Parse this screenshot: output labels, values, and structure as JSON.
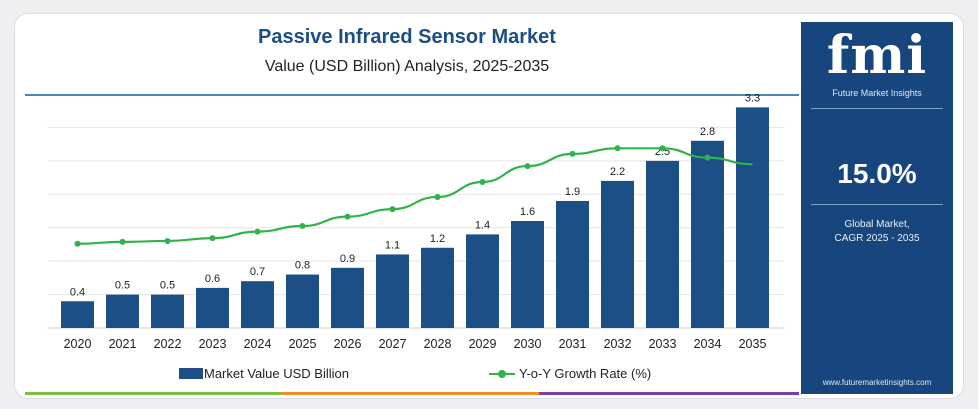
{
  "header": {
    "title": "Passive Infrared Sensor Market",
    "subtitle": "Value (USD Billion) Analysis, 2025-2035"
  },
  "legend": {
    "bar_label": "Market Value USD Billion",
    "line_label": "Y-o-Y Growth Rate (%)"
  },
  "sidebar": {
    "logo_text": "fmi",
    "logo_subtitle": "Future Market Insights",
    "cagr_value": "15.0%",
    "cagr_label_line1": "Global Market,",
    "cagr_label_line2": "CAGR 2025 - 2035",
    "website": "www.futuremarketinsights.com"
  },
  "colors": {
    "bar": "#1b4f86",
    "line": "#31b34a",
    "title": "#1c4e86",
    "sidebar_bg": "#17457e",
    "strip": [
      "#7cc142",
      "#f28c28",
      "#7b3fa0"
    ]
  },
  "chart_data": {
    "type": "bar",
    "title": "Passive Infrared Sensor Market",
    "subtitle": "Value (USD Billion) Analysis, 2025-2035",
    "categories": [
      "2020",
      "2021",
      "2022",
      "2023",
      "2024",
      "2025",
      "2026",
      "2027",
      "2028",
      "2029",
      "2030",
      "2031",
      "2032",
      "2033",
      "2034",
      "2035"
    ],
    "series": [
      {
        "name": "Market Value USD Billion",
        "type": "bar",
        "values": [
          0.4,
          0.5,
          0.5,
          0.6,
          0.7,
          0.8,
          0.9,
          1.1,
          1.2,
          1.4,
          1.6,
          1.9,
          2.2,
          2.5,
          2.8,
          3.3
        ],
        "labels": [
          "0.4",
          "0.5",
          "0.5",
          "0.6",
          "0.7",
          "0.8",
          "0.9",
          "1.1",
          "1.2",
          "1.4",
          "1.6",
          "1.9",
          "2.2",
          "2.5",
          "2.8",
          "3.3"
        ]
      },
      {
        "name": "Y-o-Y Growth Rate (%)",
        "type": "line",
        "values": [
          9.0,
          9.2,
          9.3,
          9.6,
          10.3,
          10.9,
          11.9,
          12.7,
          14.0,
          15.6,
          17.3,
          18.6,
          19.2,
          19.2,
          18.2,
          17.5
        ]
      }
    ],
    "ylim": [
      0,
      3.5
    ],
    "y2lim": [
      0,
      25
    ],
    "grid": true,
    "legend_position": "bottom"
  }
}
